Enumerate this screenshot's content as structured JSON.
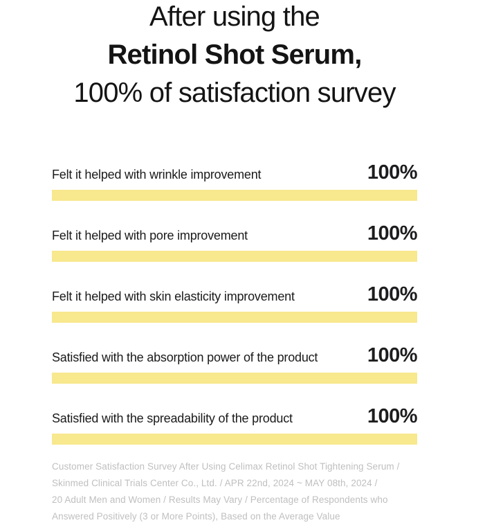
{
  "title": {
    "line1": "After using the",
    "line2": "Retinol Shot Serum,",
    "line3": "100% of satisfaction survey"
  },
  "chart_data": {
    "type": "bar",
    "orientation": "horizontal",
    "title": "After using the Retinol Shot Serum, 100% of satisfaction survey",
    "categories": [
      "Felt it helped with wrinkle improvement",
      "Felt it helped with pore improvement",
      "Felt it helped with skin elasticity improvement",
      "Satisfied with the absorption power of the product",
      "Satisfied with the spreadability of the product"
    ],
    "values": [
      100,
      100,
      100,
      100,
      100
    ],
    "data_labels": [
      "100%",
      "100%",
      "100%",
      "100%",
      "100%"
    ],
    "unit": "%",
    "xlim": [
      0,
      100
    ],
    "bar_color": "#F8E88E",
    "grid": false,
    "legend": false
  },
  "colors": {
    "bar_yellow": "#F8E88E",
    "text_dark": "#1a1a1a",
    "footer_gray": "#bfbfbf"
  },
  "footer": {
    "lines": [
      "Customer Satisfaction Survey After Using Celimax Retinol Shot Tightening Serum /",
      "Skinmed Clinical Trials Center Co., Ltd. / APR 22nd, 2024 ~ MAY 08th, 2024 /",
      "20 Adult Men and Women / Results May Vary / Percentage of Respondents who",
      "Answered Positively (3 or More Points), Based on the Average Value"
    ]
  }
}
